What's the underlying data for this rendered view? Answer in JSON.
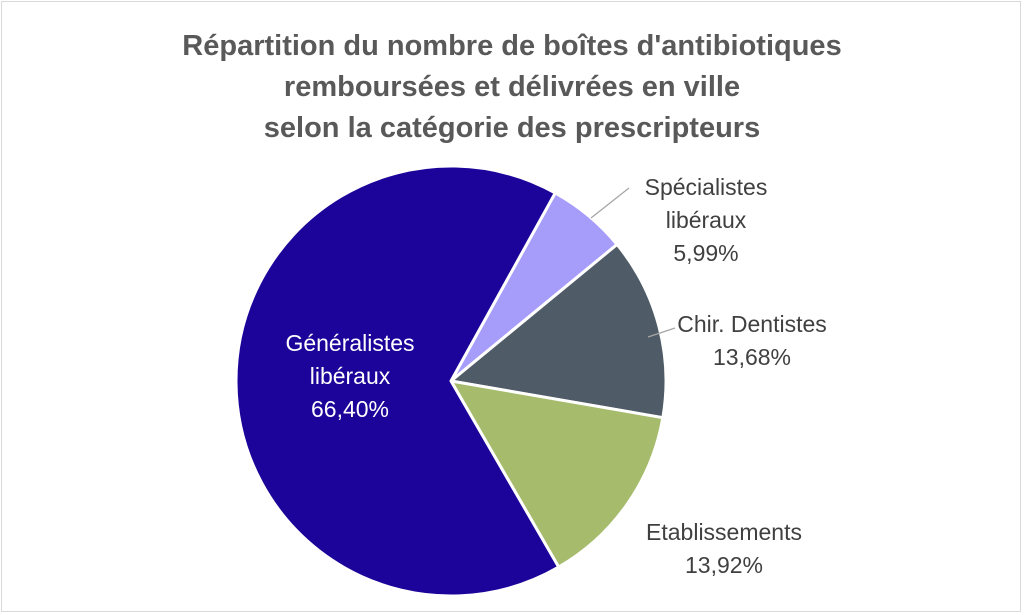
{
  "chart_data": {
    "type": "pie",
    "title_lines": [
      "Répartition du nombre de boîtes d'antibiotiques",
      "remboursées et délivrées en ville",
      "selon la catégorie des prescripteurs"
    ],
    "slices": [
      {
        "name_lines": [
          "Spécialistes",
          "libéraux"
        ],
        "value": 5.99,
        "value_label": "5,99%",
        "color": "#a69cfa",
        "label_color": "#404040"
      },
      {
        "name_lines": [
          "Chir. Dentistes"
        ],
        "value": 13.68,
        "value_label": "13,68%",
        "color": "#4f5b66",
        "label_color": "#404040"
      },
      {
        "name_lines": [
          "Etablissements"
        ],
        "value": 13.92,
        "value_label": "13,92%",
        "color": "#a6bc6c",
        "label_color": "#404040"
      },
      {
        "name_lines": [
          "Généralistes",
          "libéraux"
        ],
        "value": 66.4,
        "value_label": "66,40%",
        "color": "#1c0399",
        "label_color": "#ffffff"
      }
    ],
    "legend": "none"
  }
}
